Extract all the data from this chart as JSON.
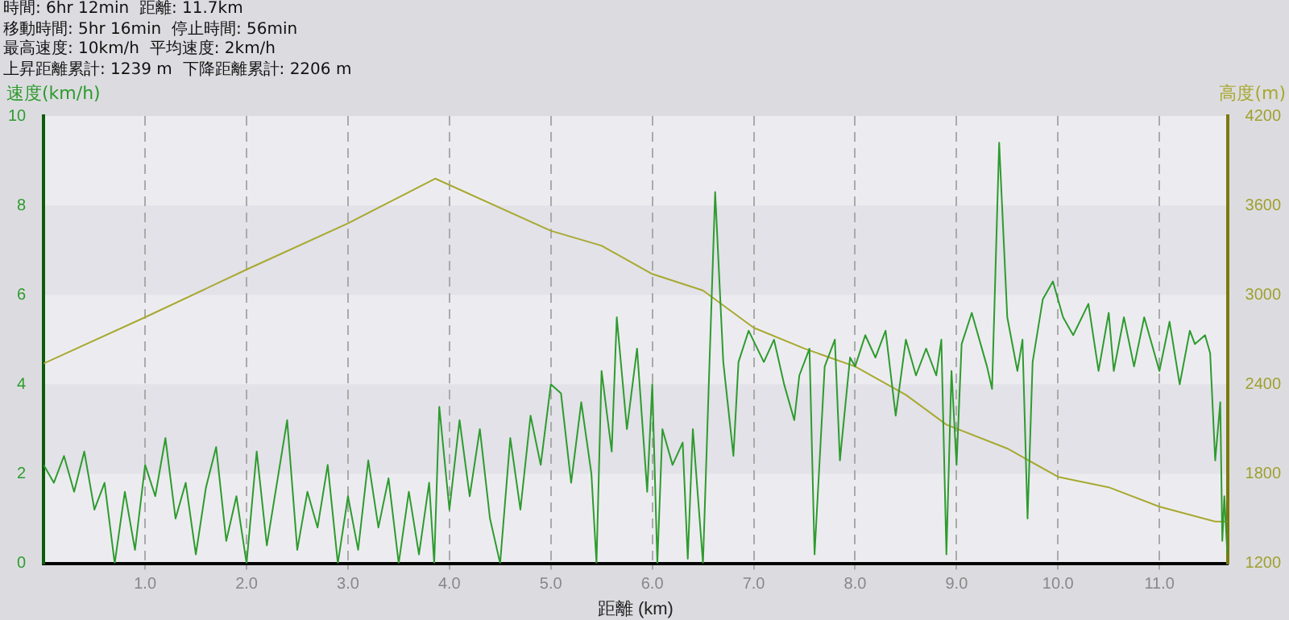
{
  "chart_data": {
    "type": "line",
    "annotations": [
      "時間: 6hr 12min  距離: 11.7km",
      "移動時間: 5hr 16min  停止時間: 56min",
      "最高速度: 10km/h  平均速度: 2km/h",
      "上昇距離累計: 1239 m  下降距離累計: 2206 m"
    ],
    "xlabel": "距離 (km)",
    "ylabel": "速度(km/h)",
    "y2label": "高度(m)",
    "xlim": [
      0,
      11.67
    ],
    "xticks": [
      {
        "value": 1,
        "label": "1.0"
      },
      {
        "value": 2,
        "label": "2.0"
      },
      {
        "value": 3,
        "label": "3.0"
      },
      {
        "value": 4,
        "label": "4.0"
      },
      {
        "value": 5,
        "label": "5.0"
      },
      {
        "value": 6,
        "label": "6.0"
      },
      {
        "value": 7,
        "label": "7.0"
      },
      {
        "value": 8,
        "label": "8.0"
      },
      {
        "value": 9,
        "label": "9.0"
      },
      {
        "value": 10,
        "label": "10.0"
      },
      {
        "value": 11,
        "label": "11.0"
      }
    ],
    "ylim": [
      0,
      10
    ],
    "yticks": [
      0,
      2,
      4,
      6,
      8,
      10
    ],
    "y2lim": [
      1200,
      4200
    ],
    "y2ticks": [
      1200,
      1800,
      2400,
      3000,
      3600,
      4200
    ],
    "grid": true,
    "marker": "none",
    "line_style": "solid",
    "series": [
      {
        "color": "#2e9b2e",
        "x": [
          0,
          0.1,
          0.2,
          0.3,
          0.4,
          0.5,
          0.6,
          0.7,
          0.8,
          0.9,
          1.0,
          1.1,
          1.2,
          1.3,
          1.4,
          1.5,
          1.6,
          1.7,
          1.8,
          1.9,
          2.0,
          2.1,
          2.2,
          2.3,
          2.4,
          2.5,
          2.6,
          2.7,
          2.8,
          2.9,
          3.0,
          3.1,
          3.2,
          3.3,
          3.4,
          3.5,
          3.6,
          3.7,
          3.8,
          3.85,
          3.9,
          4.0,
          4.1,
          4.2,
          4.3,
          4.4,
          4.5,
          4.6,
          4.7,
          4.8,
          4.9,
          5.0,
          5.1,
          5.2,
          5.3,
          5.4,
          5.45,
          5.5,
          5.6,
          5.65,
          5.75,
          5.85,
          5.95,
          6.0,
          6.05,
          6.1,
          6.2,
          6.3,
          6.35,
          6.4,
          6.5,
          6.55,
          6.62,
          6.7,
          6.8,
          6.85,
          6.95,
          7.1,
          7.2,
          7.3,
          7.4,
          7.45,
          7.55,
          7.6,
          7.7,
          7.8,
          7.85,
          7.95,
          8.0,
          8.1,
          8.2,
          8.3,
          8.4,
          8.5,
          8.6,
          8.7,
          8.8,
          8.85,
          8.9,
          8.95,
          9.0,
          9.05,
          9.15,
          9.3,
          9.35,
          9.42,
          9.5,
          9.6,
          9.65,
          9.7,
          9.75,
          9.85,
          9.95,
          10.05,
          10.15,
          10.3,
          10.4,
          10.5,
          10.55,
          10.65,
          10.75,
          10.85,
          11.0,
          11.1,
          11.2,
          11.3,
          11.35,
          11.45,
          11.5,
          11.55,
          11.6,
          11.62,
          11.64,
          11.67
        ],
        "values": [
          2.2,
          1.8,
          2.4,
          1.6,
          2.5,
          1.2,
          1.8,
          0,
          1.6,
          0.3,
          2.2,
          1.5,
          2.8,
          1.0,
          1.8,
          0.2,
          1.7,
          2.6,
          0.5,
          1.5,
          0,
          2.5,
          0.4,
          1.8,
          3.2,
          0.3,
          1.6,
          0.8,
          2.2,
          0,
          1.5,
          0.3,
          2.3,
          0.8,
          1.9,
          0,
          1.6,
          0.2,
          1.8,
          0,
          3.5,
          1.2,
          3.2,
          1.5,
          3.0,
          1.0,
          0,
          2.8,
          1.2,
          3.3,
          2.2,
          4.0,
          3.8,
          1.8,
          3.6,
          2.0,
          0,
          4.3,
          2.5,
          5.5,
          3.0,
          4.8,
          1.6,
          4.0,
          0,
          3.0,
          2.2,
          2.7,
          0.1,
          3.0,
          0,
          3.5,
          8.3,
          4.5,
          2.4,
          4.5,
          5.2,
          4.5,
          5.0,
          4.0,
          3.2,
          4.2,
          4.8,
          0.2,
          4.4,
          5.0,
          2.3,
          4.6,
          4.4,
          5.1,
          4.6,
          5.2,
          3.3,
          5.0,
          4.2,
          4.8,
          4.2,
          5.0,
          0.2,
          4.3,
          2.2,
          4.9,
          5.6,
          4.4,
          3.9,
          9.4,
          5.5,
          4.3,
          5.0,
          1.0,
          4.5,
          5.9,
          6.3,
          5.5,
          5.1,
          5.8,
          4.3,
          5.6,
          4.3,
          5.5,
          4.4,
          5.5,
          4.3,
          5.4,
          4.0,
          5.2,
          4.9,
          5.1,
          4.7,
          2.3,
          3.6,
          0.5,
          1.5,
          0.2
        ]
      },
      {
        "color": "#a8a830",
        "axis": "y2",
        "x": [
          0,
          1.0,
          2.0,
          3.0,
          3.86,
          5.0,
          5.5,
          6.0,
          6.5,
          7.0,
          7.5,
          8.0,
          8.5,
          8.9,
          9.5,
          10.0,
          10.5,
          11.0,
          11.55,
          11.67
        ],
        "values": [
          2540,
          2850,
          3170,
          3480,
          3780,
          3430,
          3330,
          3140,
          3030,
          2780,
          2640,
          2520,
          2330,
          2130,
          1970,
          1780,
          1710,
          1580,
          1480,
          1480
        ]
      }
    ]
  }
}
